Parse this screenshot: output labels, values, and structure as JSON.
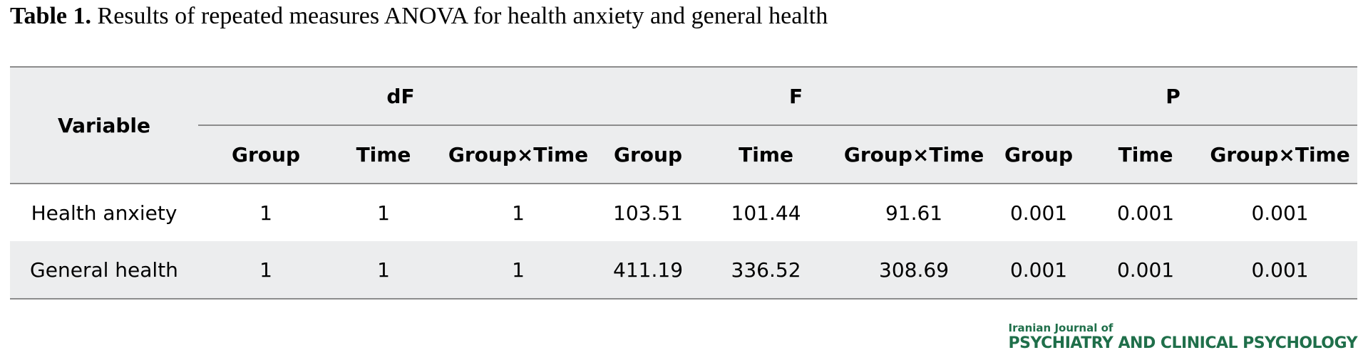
{
  "caption": {
    "label": "Table 1.",
    "text": "Results of repeated measures ANOVA for health anxiety and general health"
  },
  "table": {
    "variable_header": "Variable",
    "groups": [
      "dF",
      "F",
      "P"
    ],
    "subheaders": [
      "Group",
      "Time",
      "Group×Time",
      "Group",
      "Time",
      "Group×Time",
      "Group",
      "Time",
      "Group×Time"
    ],
    "rows": [
      {
        "variable": "Health anxiety",
        "values": [
          "1",
          "1",
          "1",
          "103.51",
          "101.44",
          "91.61",
          "0.001",
          "0.001",
          "0.001"
        ]
      },
      {
        "variable": "General health",
        "values": [
          "1",
          "1",
          "1",
          "411.19",
          "336.52",
          "308.69",
          "0.001",
          "0.001",
          "0.001"
        ]
      }
    ]
  },
  "journal": {
    "line1": "Iranian Journal of",
    "line2": "PSYCHIATRY AND CLINICAL PSYCHOLOGY",
    "color": "#1f6f4a"
  }
}
